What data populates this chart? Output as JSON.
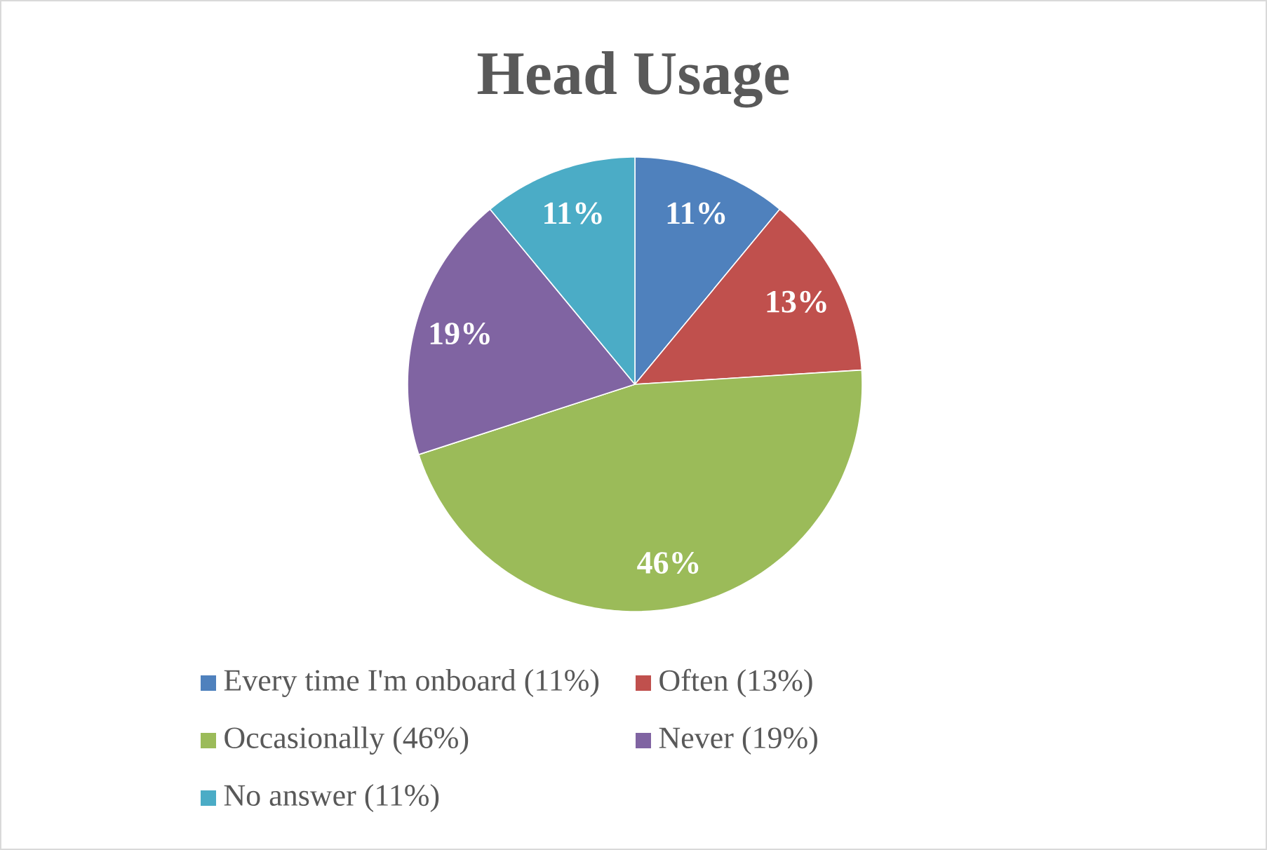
{
  "chart_data": {
    "type": "pie",
    "title": "Head Usage",
    "categories": [
      "Every time I'm onboard (11%)",
      "Often (13%)",
      "Occasionally (46%)",
      "Never (19%)",
      "No answer (11%)"
    ],
    "values": [
      11,
      13,
      46,
      19,
      11
    ],
    "colors": [
      "#4f81bd",
      "#c0504d",
      "#9bbb59",
      "#8064a2",
      "#4bacc6"
    ],
    "value_labels": [
      "11%",
      "13%",
      "46%",
      "19%",
      "11%"
    ],
    "legend": "bottom"
  }
}
